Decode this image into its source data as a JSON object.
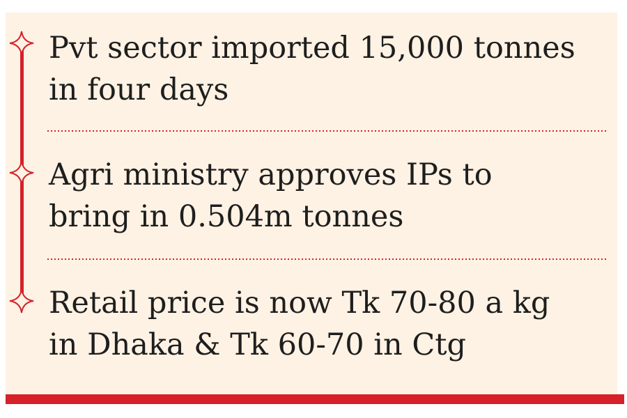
{
  "items": [
    {
      "lines": [
        "Pvt sector imported 15,000 tonnes",
        "in four days"
      ]
    },
    {
      "lines": [
        "Agri ministry approves IPs to",
        "bring in 0.504m tonnes"
      ]
    },
    {
      "lines": [
        "Retail price is now Tk 70-80 a kg",
        "in Dhaka & Tk 60-70 in Ctg"
      ]
    }
  ]
}
